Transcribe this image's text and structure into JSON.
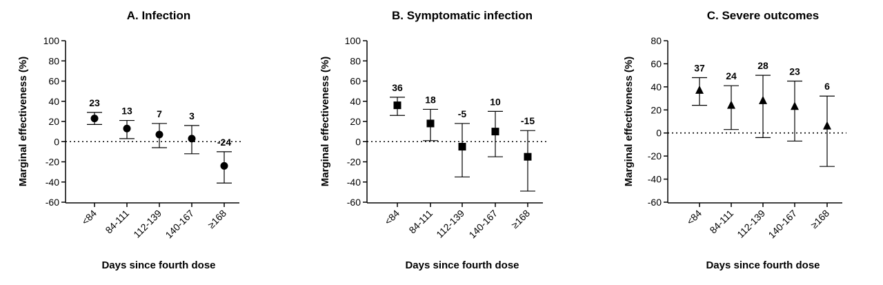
{
  "chart_data": [
    {
      "type": "scatter",
      "title": "A. Infection",
      "xlabel": "Days since fourth dose",
      "ylabel": "Marginal effectiveness (%)",
      "ylim": [
        -60,
        100
      ],
      "yticks": [
        -60,
        -40,
        -20,
        0,
        20,
        40,
        60,
        80,
        100
      ],
      "categories": [
        "<84",
        "84-111",
        "112-139",
        "140-167",
        "≥168"
      ],
      "marker": "circle",
      "reference_line": 0,
      "points": [
        {
          "x": "<84",
          "y": 23,
          "lower": 17,
          "upper": 29,
          "label": "23"
        },
        {
          "x": "84-111",
          "y": 13,
          "lower": 3,
          "upper": 21,
          "label": "13"
        },
        {
          "x": "112-139",
          "y": 7,
          "lower": -6,
          "upper": 18,
          "label": "7"
        },
        {
          "x": "140-167",
          "y": 3,
          "lower": -12,
          "upper": 16,
          "label": "3"
        },
        {
          "x": "≥168",
          "y": -24,
          "lower": -41,
          "upper": -10,
          "label": "-24"
        }
      ]
    },
    {
      "type": "scatter",
      "title": "B. Symptomatic infection",
      "xlabel": "Days since fourth dose",
      "ylabel": "Marginal effectiveness (%)",
      "ylim": [
        -60,
        100
      ],
      "yticks": [
        -60,
        -40,
        -20,
        0,
        20,
        40,
        60,
        80,
        100
      ],
      "categories": [
        "<84",
        "84-111",
        "112-139",
        "140-167",
        "≥168"
      ],
      "marker": "square",
      "reference_line": 0,
      "points": [
        {
          "x": "<84",
          "y": 36,
          "lower": 26,
          "upper": 44,
          "label": "36"
        },
        {
          "x": "84-111",
          "y": 18,
          "lower": 1,
          "upper": 32,
          "label": "18"
        },
        {
          "x": "112-139",
          "y": -5,
          "lower": -35,
          "upper": 18,
          "label": "-5"
        },
        {
          "x": "140-167",
          "y": 10,
          "lower": -15,
          "upper": 30,
          "label": "10"
        },
        {
          "x": "≥168",
          "y": -15,
          "lower": -49,
          "upper": 11,
          "label": "-15"
        }
      ]
    },
    {
      "type": "scatter",
      "title": "C. Severe outcomes",
      "xlabel": "Days since fourth dose",
      "ylabel": "Marginal effectiveness (%)",
      "ylim": [
        -60,
        80
      ],
      "yticks": [
        -60,
        -40,
        -20,
        0,
        20,
        40,
        60,
        80
      ],
      "categories": [
        "<84",
        "84-111",
        "112-139",
        "140-167",
        "≥168"
      ],
      "marker": "triangle",
      "reference_line": 0,
      "points": [
        {
          "x": "<84",
          "y": 37,
          "lower": 24,
          "upper": 48,
          "label": "37"
        },
        {
          "x": "84-111",
          "y": 24,
          "lower": 3,
          "upper": 41,
          "label": "24"
        },
        {
          "x": "112-139",
          "y": 28,
          "lower": -4,
          "upper": 50,
          "label": "28"
        },
        {
          "x": "140-167",
          "y": 23,
          "lower": -7,
          "upper": 45,
          "label": "23"
        },
        {
          "x": "≥168",
          "y": 6,
          "lower": -29,
          "upper": 32,
          "label": "6"
        }
      ]
    }
  ]
}
